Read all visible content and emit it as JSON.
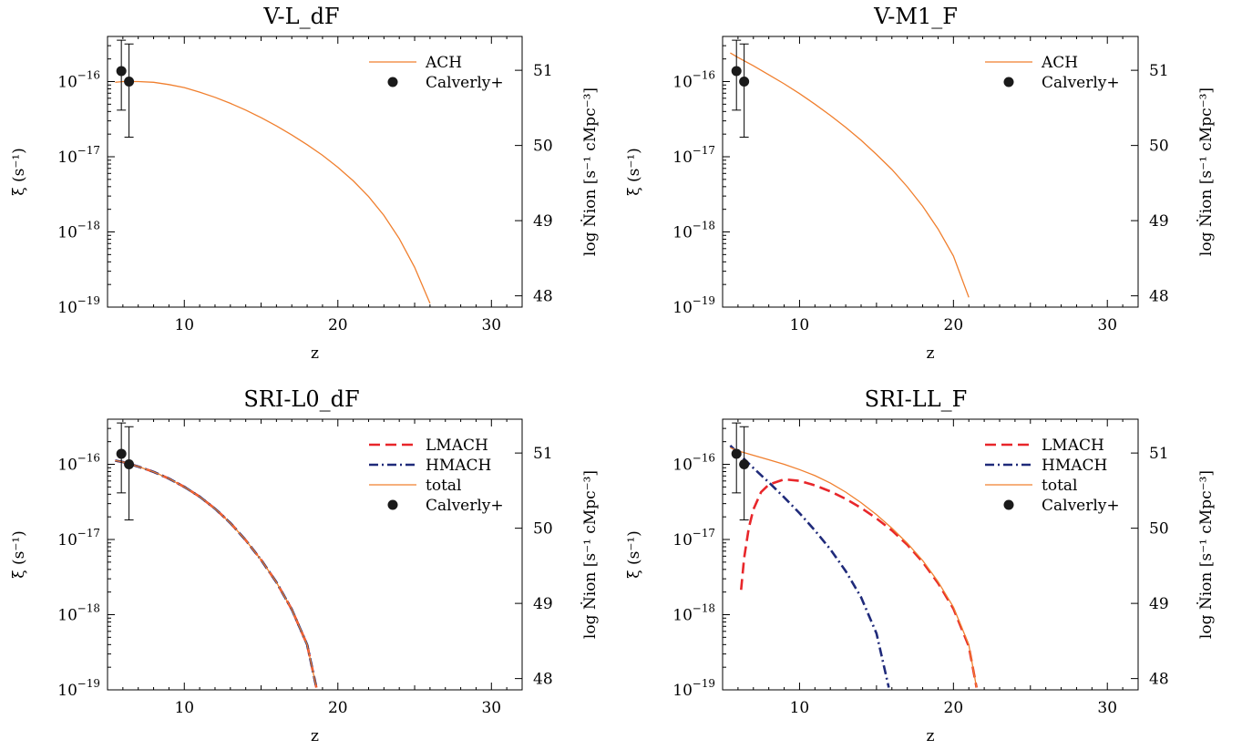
{
  "chart_data": [
    {
      "type": "line",
      "title": "V-L_dF",
      "xlabel": "z",
      "ylabel": "ξ (s⁻¹)",
      "ylabel_right": "log Ṅion [s⁻¹ cMpc⁻³]",
      "xlim": [
        5,
        32
      ],
      "ylim_log10": [
        -19,
        -15.4
      ],
      "xticks": [
        10,
        20,
        30
      ],
      "yticks_exp": [
        -16,
        -17,
        -18,
        -19
      ],
      "y2ticks": [
        "51",
        "50",
        "49",
        "48"
      ],
      "y2tick_log10xi": [
        -15.85,
        -16.85,
        -17.85,
        -18.85
      ],
      "legend_position": "top-right",
      "series": [
        {
          "name": "ACH",
          "style": "solid",
          "color": "#f07f2e",
          "x": [
            5.5,
            6,
            7,
            8,
            9,
            10,
            11,
            12,
            13,
            14,
            15,
            16,
            17,
            18,
            19,
            20,
            21,
            22,
            23,
            24,
            25,
            26
          ],
          "log10y": [
            -16.01,
            -16.0,
            -16.0,
            -16.01,
            -16.04,
            -16.08,
            -16.14,
            -16.21,
            -16.29,
            -16.38,
            -16.48,
            -16.59,
            -16.71,
            -16.84,
            -16.98,
            -17.14,
            -17.32,
            -17.53,
            -17.78,
            -18.09,
            -18.47,
            -18.95
          ]
        }
      ],
      "points": {
        "name": "Calverly+",
        "x": [
          5.9,
          6.4
        ],
        "log10y": [
          -15.86,
          -16.0
        ],
        "log10y_lo": [
          -16.38,
          -16.74
        ],
        "log10y_hi": [
          -15.45,
          -15.5
        ]
      }
    },
    {
      "type": "line",
      "title": "V-M1_F",
      "xlabel": "z",
      "ylabel": "ξ (s⁻¹)",
      "ylabel_right": "log Ṅion [s⁻¹ cMpc⁻³]",
      "xlim": [
        5,
        32
      ],
      "ylim_log10": [
        -19,
        -15.4
      ],
      "xticks": [
        10,
        20,
        30
      ],
      "yticks_exp": [
        -16,
        -17,
        -18,
        -19
      ],
      "y2ticks": [
        "51",
        "50",
        "49",
        "48"
      ],
      "y2tick_log10xi": [
        -15.85,
        -16.85,
        -17.85,
        -18.85
      ],
      "legend_position": "top-right",
      "series": [
        {
          "name": "ACH",
          "style": "solid",
          "color": "#f07f2e",
          "x": [
            5.5,
            6,
            7,
            8,
            9,
            10,
            11,
            12,
            13,
            14,
            15,
            16,
            17,
            18,
            19,
            20,
            21
          ],
          "log10y": [
            -15.62,
            -15.68,
            -15.79,
            -15.91,
            -16.03,
            -16.16,
            -16.3,
            -16.45,
            -16.61,
            -16.78,
            -16.97,
            -17.17,
            -17.4,
            -17.66,
            -17.96,
            -18.32,
            -18.87
          ]
        }
      ],
      "points": {
        "name": "Calverly+",
        "x": [
          5.9,
          6.4
        ],
        "log10y": [
          -15.86,
          -16.0
        ],
        "log10y_lo": [
          -16.38,
          -16.74
        ],
        "log10y_hi": [
          -15.45,
          -15.5
        ]
      }
    },
    {
      "type": "line",
      "title": "SRI-L0_dF",
      "xlabel": "z",
      "ylabel": "ξ (s⁻¹)",
      "ylabel_right": "log Ṅion [s⁻¹ cMpc⁻³]",
      "xlim": [
        5,
        32
      ],
      "ylim_log10": [
        -19,
        -15.4
      ],
      "xticks": [
        10,
        20,
        30
      ],
      "yticks_exp": [
        -16,
        -17,
        -18,
        -19
      ],
      "y2ticks": [
        "51",
        "50",
        "49",
        "48"
      ],
      "y2tick_log10xi": [
        -15.85,
        -16.85,
        -17.85,
        -18.85
      ],
      "legend_position": "top-right",
      "series": [
        {
          "name": "LMACH",
          "style": "dashed",
          "color": "#e8262a",
          "x": [
            5.5,
            6,
            7,
            8,
            9,
            10,
            11,
            12,
            13,
            14,
            15,
            16,
            17,
            18,
            18.6
          ],
          "log10y": [
            -15.95,
            -15.97,
            -16.03,
            -16.1,
            -16.19,
            -16.3,
            -16.43,
            -16.59,
            -16.78,
            -17.01,
            -17.27,
            -17.57,
            -17.93,
            -18.4,
            -18.97
          ]
        },
        {
          "name": "HMACH",
          "style": "dashdot",
          "color": "#1f2a7a",
          "x": [
            5.5,
            6,
            7,
            8,
            9,
            10,
            11,
            12,
            13,
            14,
            15,
            16,
            17,
            18,
            18.6
          ],
          "log10y": [
            -15.95,
            -15.97,
            -16.03,
            -16.1,
            -16.19,
            -16.3,
            -16.43,
            -16.59,
            -16.78,
            -17.01,
            -17.27,
            -17.57,
            -17.93,
            -18.4,
            -18.97
          ]
        },
        {
          "name": "total",
          "style": "solid",
          "color": "#f07f2e",
          "x": [
            5.5,
            6,
            7,
            8,
            9,
            10,
            11,
            12,
            13,
            14,
            15,
            16,
            17,
            18,
            18.6
          ],
          "log10y": [
            -15.95,
            -15.97,
            -16.03,
            -16.1,
            -16.19,
            -16.3,
            -16.43,
            -16.59,
            -16.78,
            -17.01,
            -17.27,
            -17.57,
            -17.93,
            -18.4,
            -18.97
          ]
        }
      ],
      "points": {
        "name": "Calverly+",
        "x": [
          5.9,
          6.4
        ],
        "log10y": [
          -15.86,
          -16.0
        ],
        "log10y_lo": [
          -16.38,
          -16.74
        ],
        "log10y_hi": [
          -15.45,
          -15.5
        ]
      }
    },
    {
      "type": "line",
      "title": "SRI-LL_F",
      "xlabel": "z",
      "ylabel": "ξ (s⁻¹)",
      "ylabel_right": "log Ṅion [s⁻¹ cMpc⁻³]",
      "xlim": [
        5,
        32
      ],
      "ylim_log10": [
        -19,
        -15.4
      ],
      "xticks": [
        10,
        20,
        30
      ],
      "yticks_exp": [
        -16,
        -17,
        -18,
        -19
      ],
      "y2ticks": [
        "51",
        "50",
        "49",
        "48"
      ],
      "y2tick_log10xi": [
        -15.85,
        -16.85,
        -17.85,
        -18.85
      ],
      "legend_position": "top-right",
      "series": [
        {
          "name": "LMACH",
          "style": "dashed",
          "color": "#e8262a",
          "x": [
            6.2,
            6.4,
            6.7,
            7.0,
            7.5,
            8.0,
            9.0,
            10,
            11,
            12,
            13,
            14,
            15,
            16,
            17,
            18,
            19,
            20,
            21,
            21.5
          ],
          "log10y": [
            -17.67,
            -17.25,
            -16.85,
            -16.6,
            -16.37,
            -16.27,
            -16.2,
            -16.22,
            -16.28,
            -16.36,
            -16.46,
            -16.58,
            -16.72,
            -16.88,
            -17.07,
            -17.3,
            -17.58,
            -17.92,
            -18.42,
            -18.97
          ]
        },
        {
          "name": "HMACH",
          "style": "dashdot",
          "color": "#1f2a7a",
          "x": [
            5.5,
            6,
            7,
            8,
            9,
            10,
            11,
            12,
            13,
            14,
            15,
            15.8
          ],
          "log10y": [
            -15.75,
            -15.85,
            -16.05,
            -16.24,
            -16.44,
            -16.65,
            -16.88,
            -17.13,
            -17.42,
            -17.77,
            -18.25,
            -18.97
          ]
        },
        {
          "name": "total",
          "style": "solid",
          "color": "#f07f2e",
          "x": [
            5.5,
            6,
            7,
            8,
            9,
            10,
            11,
            12,
            13,
            14,
            15,
            16,
            17,
            18,
            19,
            20,
            21,
            21.5
          ],
          "log10y": [
            -15.78,
            -15.82,
            -15.88,
            -15.94,
            -16.0,
            -16.07,
            -16.15,
            -16.25,
            -16.37,
            -16.51,
            -16.67,
            -16.85,
            -17.05,
            -17.28,
            -17.56,
            -17.9,
            -18.4,
            -18.97
          ]
        }
      ],
      "points": {
        "name": "Calverly+",
        "x": [
          5.9,
          6.4
        ],
        "log10y": [
          -15.86,
          -16.0
        ],
        "log10y_lo": [
          -16.38,
          -16.74
        ],
        "log10y_hi": [
          -15.45,
          -15.5
        ]
      }
    }
  ]
}
